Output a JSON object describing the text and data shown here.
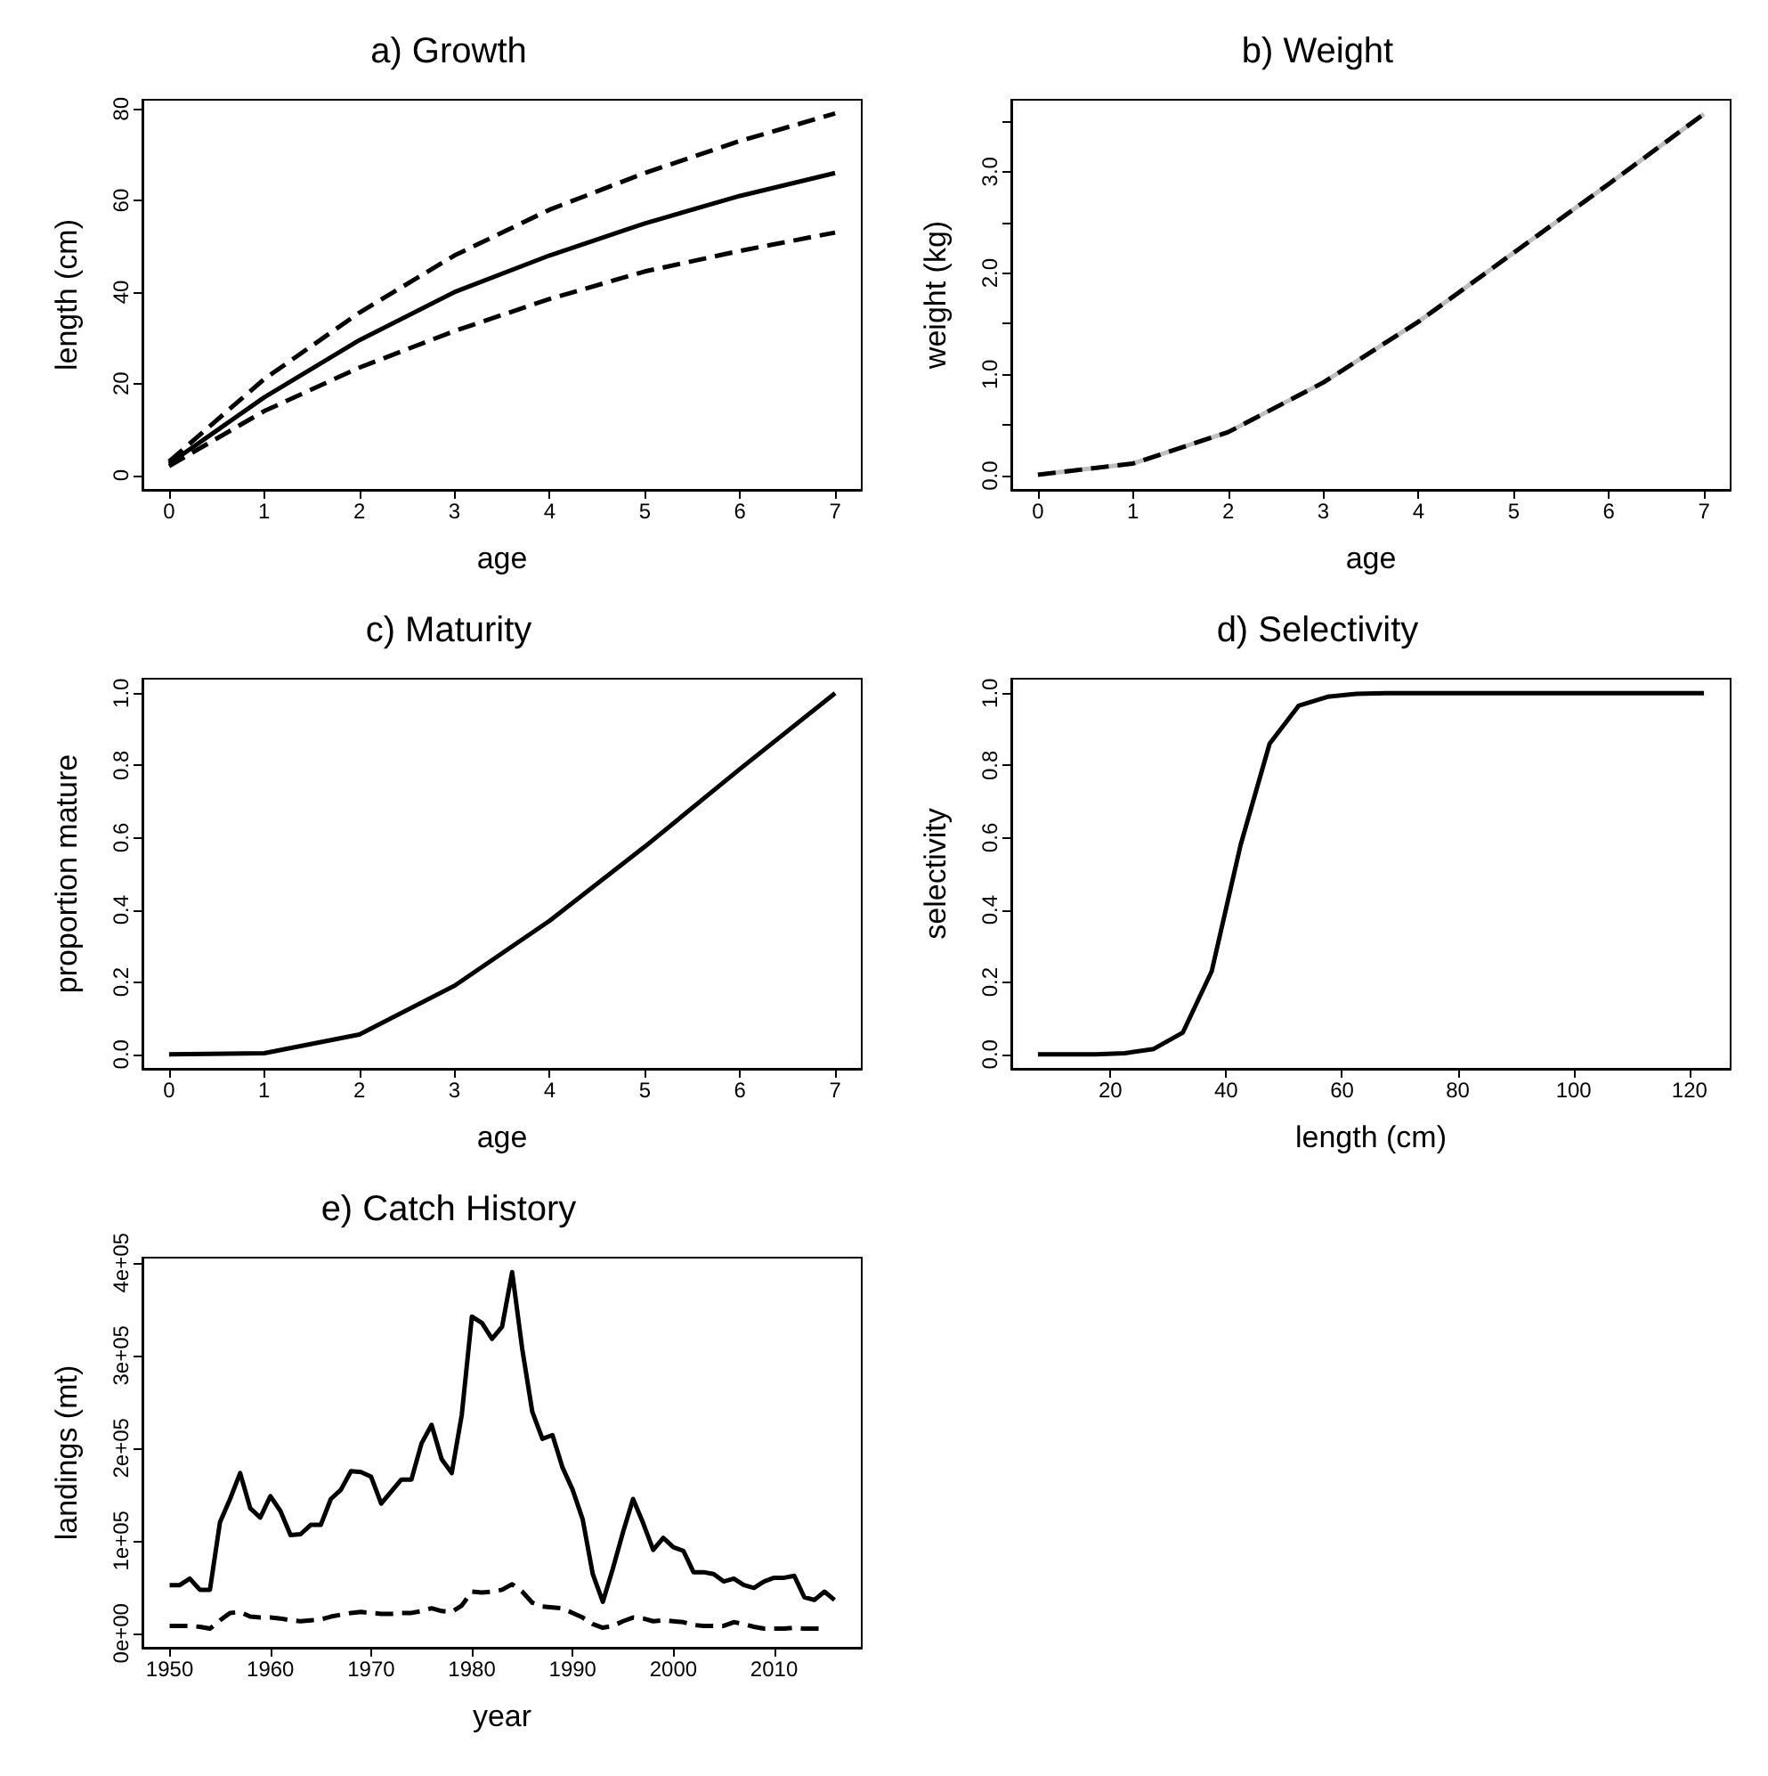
{
  "chart_data": [
    {
      "type": "line",
      "title": "a) Growth",
      "xlabel": "age",
      "ylabel": "length (cm)",
      "x": [
        0,
        1,
        2,
        3,
        4,
        5,
        6,
        7
      ],
      "xlim": [
        -0.28,
        7.28
      ],
      "ylim": [
        -3.2,
        82
      ],
      "xticks": [
        0,
        1,
        2,
        3,
        4,
        5,
        6,
        7
      ],
      "yticks": [
        0,
        20,
        40,
        60,
        80
      ],
      "series": [
        {
          "color": "#000000",
          "line_style": "solid",
          "values": [
            2.5,
            17,
            29.5,
            40,
            48,
            55,
            61,
            66
          ]
        },
        {
          "color": "#000000",
          "line_style": "dashed",
          "values": [
            3,
            21,
            35.5,
            48,
            58,
            66,
            73,
            79
          ]
        },
        {
          "color": "#000000",
          "line_style": "dashed",
          "values": [
            2,
            14,
            23.5,
            31.5,
            38.5,
            44.5,
            49,
            53
          ]
        }
      ]
    },
    {
      "type": "line",
      "title": "b) Weight",
      "xlabel": "age",
      "ylabel": "weight (kg)",
      "x": [
        0,
        1,
        2,
        3,
        4,
        5,
        6,
        7
      ],
      "xlim": [
        -0.28,
        7.28
      ],
      "ylim": [
        -0.14,
        3.71
      ],
      "xticks": [
        0,
        1,
        2,
        3,
        4,
        5,
        6,
        7
      ],
      "yticks": [
        {
          "value": 0,
          "label": "0.0"
        },
        {
          "value": 0.5,
          "label": null
        },
        {
          "value": 1,
          "label": "1.0"
        },
        {
          "value": 1.5,
          "label": null
        },
        {
          "value": 2,
          "label": "2.0"
        },
        {
          "value": 2.5,
          "label": null
        },
        {
          "value": 3,
          "label": "3.0"
        },
        {
          "value": 3.5,
          "label": null
        }
      ],
      "series": [
        {
          "color": "#bebebe",
          "line_style": "solid",
          "values": [
            0.01,
            0.12,
            0.43,
            0.92,
            1.52,
            2.2,
            2.88,
            3.57
          ]
        },
        {
          "color": "#000000",
          "line_style": "dashed",
          "values": [
            0.01,
            0.12,
            0.43,
            0.92,
            1.52,
            2.2,
            2.88,
            3.57
          ]
        }
      ]
    },
    {
      "type": "line",
      "title": "c) Maturity",
      "xlabel": "age",
      "ylabel": "proportion mature",
      "x": [
        0,
        1,
        2,
        3,
        4,
        5,
        6,
        7
      ],
      "xlim": [
        -0.28,
        7.28
      ],
      "ylim": [
        -0.04,
        1.04
      ],
      "xticks": [
        0,
        1,
        2,
        3,
        4,
        5,
        6,
        7
      ],
      "yticks": [
        {
          "value": 0,
          "label": "0.0"
        },
        {
          "value": 0.2,
          "label": "0.2"
        },
        {
          "value": 0.4,
          "label": "0.4"
        },
        {
          "value": 0.6,
          "label": "0.6"
        },
        {
          "value": 0.8,
          "label": "0.8"
        },
        {
          "value": 1,
          "label": "1.0"
        }
      ],
      "series": [
        {
          "color": "#000000",
          "line_style": "solid",
          "values": [
            0,
            0.003,
            0.055,
            0.19,
            0.37,
            0.575,
            0.79,
            1.0
          ]
        }
      ]
    },
    {
      "type": "line",
      "title": "d) Selectivity",
      "xlabel": "length (cm)",
      "ylabel": "selectivity",
      "x": [
        7.5,
        12.5,
        17.5,
        22.5,
        27.5,
        32.5,
        37.5,
        42.5,
        47.5,
        52.5,
        57.5,
        62.5,
        67.5,
        72.5,
        77.5,
        82.5,
        87.5,
        92.5,
        97.5,
        102.5,
        107.5,
        112.5,
        117.5,
        122.5
      ],
      "xlim": [
        2.9,
        127.1
      ],
      "ylim": [
        -0.04,
        1.04
      ],
      "xticks": [
        20,
        40,
        60,
        80,
        100,
        120
      ],
      "yticks": [
        {
          "value": 0,
          "label": "0.0"
        },
        {
          "value": 0.2,
          "label": "0.2"
        },
        {
          "value": 0.4,
          "label": "0.4"
        },
        {
          "value": 0.6,
          "label": "0.6"
        },
        {
          "value": 0.8,
          "label": "0.8"
        },
        {
          "value": 1,
          "label": "1.0"
        }
      ],
      "series": [
        {
          "color": "#000000",
          "line_style": "solid",
          "values": [
            0,
            0,
            0,
            0.003,
            0.015,
            0.06,
            0.23,
            0.58,
            0.86,
            0.965,
            0.99,
            0.998,
            1,
            1,
            1,
            1,
            1,
            1,
            1,
            1,
            1,
            1,
            1,
            1
          ]
        }
      ]
    },
    {
      "type": "line",
      "title": "e) Catch History",
      "xlabel": "year",
      "ylabel": "landings (mt)",
      "x": [
        1950,
        1951,
        1952,
        1953,
        1954,
        1955,
        1956,
        1957,
        1958,
        1959,
        1960,
        1961,
        1962,
        1963,
        1964,
        1965,
        1966,
        1967,
        1968,
        1969,
        1970,
        1971,
        1972,
        1973,
        1974,
        1975,
        1976,
        1977,
        1978,
        1979,
        1980,
        1981,
        1982,
        1983,
        1984,
        1985,
        1986,
        1987,
        1988,
        1989,
        1990,
        1991,
        1992,
        1993,
        1994,
        1995,
        1996,
        1997,
        1998,
        1999,
        2000,
        2001,
        2002,
        2003,
        2004,
        2005,
        2006,
        2007,
        2008,
        2009,
        2010,
        2011,
        2012,
        2013,
        2014,
        2015,
        2016
      ],
      "xlim": [
        1947.3,
        2018.7
      ],
      "ylim": [
        -15600,
        405600
      ],
      "xticks": [
        1950,
        1960,
        1970,
        1980,
        1990,
        2000,
        2010
      ],
      "yticks": [
        {
          "value": 0,
          "label": "0e+00"
        },
        {
          "value": 100000,
          "label": "1e+05"
        },
        {
          "value": 200000,
          "label": "2e+05"
        },
        {
          "value": 300000,
          "label": "3e+05"
        },
        {
          "value": 400000,
          "label": "4e+05"
        }
      ],
      "series": [
        {
          "color": "#000000",
          "line_style": "solid",
          "values": [
            52000,
            52000,
            59000,
            47000,
            47000,
            120000,
            145000,
            173000,
            135000,
            125000,
            148000,
            132000,
            106000,
            107000,
            117000,
            117000,
            145000,
            155000,
            175000,
            174000,
            169000,
            140000,
            153000,
            166000,
            166000,
            205000,
            225000,
            188000,
            173000,
            236000,
            342000,
            335000,
            318000,
            331000,
            390000,
            307000,
            239000,
            210000,
            214000,
            179000,
            155000,
            123000,
            64000,
            34000,
            70000,
            109000,
            145000,
            119000,
            90000,
            103000,
            93000,
            89000,
            66000,
            66000,
            64000,
            56000,
            59000,
            52000,
            49000,
            56000,
            60000,
            60000,
            62000,
            39000,
            36000,
            45000,
            36000
          ]
        },
        {
          "color": "#000000",
          "line_style": "dashed",
          "values": [
            8000,
            8000,
            8000,
            7000,
            5000,
            14000,
            22000,
            23000,
            18000,
            17000,
            17000,
            16000,
            14000,
            13000,
            14000,
            15000,
            18000,
            20000,
            22000,
            23000,
            22000,
            21000,
            21000,
            22000,
            22000,
            24000,
            27000,
            24000,
            23000,
            30000,
            45000,
            44000,
            45000,
            47000,
            53000,
            45000,
            33000,
            29000,
            28000,
            27000,
            22000,
            17000,
            10000,
            6000,
            8000,
            13000,
            17000,
            16000,
            13000,
            14000,
            13000,
            12000,
            9000,
            8000,
            8000,
            8000,
            12000,
            10000,
            7000,
            5000,
            5000,
            5000,
            6000,
            5000,
            5000,
            5000,
            null
          ]
        }
      ]
    }
  ]
}
